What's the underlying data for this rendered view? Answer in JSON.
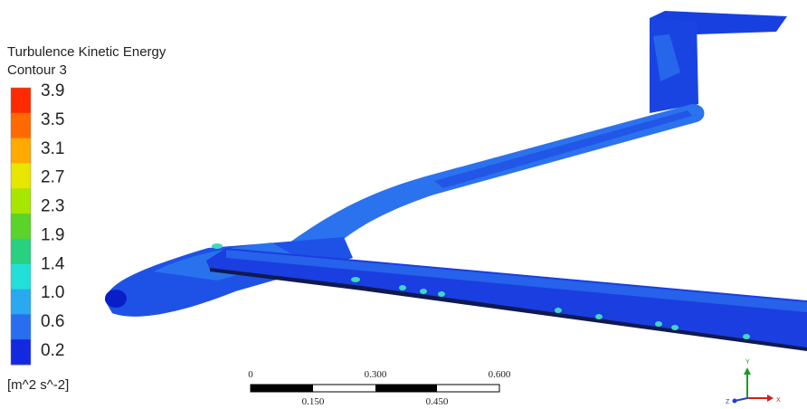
{
  "legend": {
    "title": "Turbulence Kinetic Energy",
    "subtitle": "Contour 3",
    "labels": [
      "3.9",
      "3.5",
      "3.1",
      "2.7",
      "2.3",
      "1.9",
      "1.4",
      "1.0",
      "0.6",
      "0.2"
    ],
    "unit": "[m^2 s^-2]"
  },
  "scale_bar": {
    "top_labels": [
      "0",
      "0.300",
      "0.600"
    ],
    "bottom_labels": [
      "0.150",
      "0.450"
    ]
  },
  "triad": {
    "y": "Y",
    "z": "Z",
    "x": "X"
  }
}
